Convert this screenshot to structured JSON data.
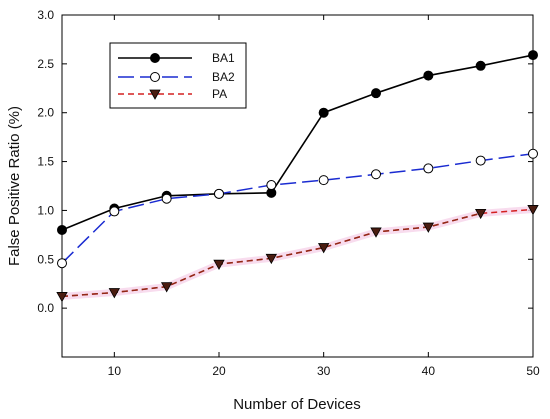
{
  "chart_data": {
    "type": "line",
    "title": "",
    "xlabel": "Number of Devices",
    "ylabel": "False Positive Ratio (%)",
    "xlim": [
      5,
      50
    ],
    "ylim": [
      -0.5,
      3.0
    ],
    "x_ticks": [
      10,
      20,
      30,
      40,
      50
    ],
    "x_tick_labels": [
      "10",
      "20",
      "30",
      "40",
      "50"
    ],
    "y_ticks": [
      0.0,
      0.5,
      1.0,
      1.5,
      2.0,
      2.5,
      3.0
    ],
    "y_tick_labels": [
      "0.0",
      "0.5",
      "1.0",
      "1.5",
      "2.0",
      "2.5",
      "3.0"
    ],
    "grid": false,
    "legend_position": "top-left",
    "x": [
      5,
      10,
      15,
      20,
      25,
      30,
      35,
      40,
      45,
      50
    ],
    "series": [
      {
        "name": "BA1",
        "values": [
          0.8,
          1.02,
          1.15,
          1.17,
          1.18,
          2.0,
          2.2,
          2.38,
          2.48,
          2.59
        ],
        "color": "#000000",
        "line_style": "solid",
        "marker": "filled-circle"
      },
      {
        "name": "BA2",
        "values": [
          0.46,
          0.99,
          1.12,
          1.17,
          1.26,
          1.31,
          1.37,
          1.43,
          1.51,
          1.58
        ],
        "color": "#1a2bd1",
        "line_style": "long-dash",
        "marker": "open-circle"
      },
      {
        "name": "PA",
        "values": [
          0.12,
          0.16,
          0.22,
          0.45,
          0.51,
          0.62,
          0.78,
          0.83,
          0.97,
          1.01
        ],
        "color": "#d32020",
        "line_style": "dashed",
        "marker": "filled-down-triangle",
        "marker_color": "#4a1c10"
      }
    ]
  }
}
